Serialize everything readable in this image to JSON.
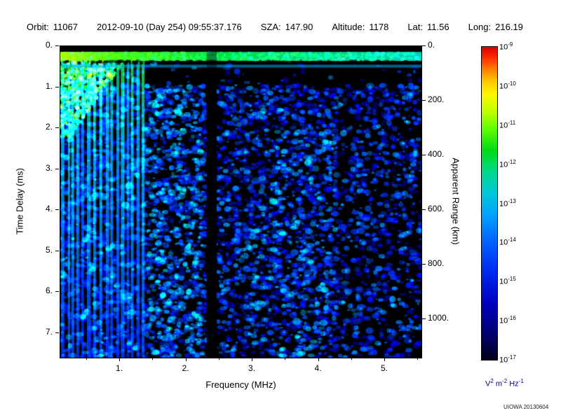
{
  "header": {
    "segments": [
      {
        "label": "Orbit:",
        "value": "11067"
      },
      {
        "label": "",
        "value": "2012-09-10 (Day 254) 09:55:37.176"
      },
      {
        "label": "SZA:",
        "value": "147.90"
      },
      {
        "label": "Altitude:",
        "value": "1178"
      },
      {
        "label": "Lat:",
        "value": "11.56"
      },
      {
        "label": "Long:",
        "value": "216.19"
      }
    ]
  },
  "watermark": "UIOWA 20130604",
  "chart_data": {
    "type": "heatmap",
    "title": "",
    "xlabel": "Frequency (MHz)",
    "ylabel_left": "Time Delay (ms)",
    "ylabel_right": "Apparent Range (km)",
    "x_range_mhz": [
      0.1,
      5.55
    ],
    "y_range_ms": [
      0,
      7.6
    ],
    "y_right_range_km": [
      0,
      1140
    ],
    "km_per_ms": 150,
    "x_ticks": [
      {
        "v": 1,
        "label": "1."
      },
      {
        "v": 2,
        "label": "2."
      },
      {
        "v": 3,
        "label": "3."
      },
      {
        "v": 4,
        "label": "4."
      },
      {
        "v": 5,
        "label": "5."
      }
    ],
    "y_ticks_left": [
      {
        "v": 0,
        "label": "0."
      },
      {
        "v": 1,
        "label": "1."
      },
      {
        "v": 2,
        "label": "2."
      },
      {
        "v": 3,
        "label": "3."
      },
      {
        "v": 4,
        "label": "4."
      },
      {
        "v": 5,
        "label": "5."
      },
      {
        "v": 6,
        "label": "6."
      },
      {
        "v": 7,
        "label": "7."
      }
    ],
    "y_ticks_right": [
      {
        "v": 0,
        "label": "0."
      },
      {
        "v": 200,
        "label": "200."
      },
      {
        "v": 400,
        "label": "400."
      },
      {
        "v": 600,
        "label": "600."
      },
      {
        "v": 800,
        "label": "800."
      },
      {
        "v": 1000,
        "label": "1000."
      }
    ],
    "colorbar": {
      "scale": "log",
      "tick_exponents": [
        "-9",
        "-10",
        "-11",
        "-12",
        "-13",
        "-14",
        "-15",
        "-16",
        "-17"
      ],
      "unit_parts": [
        {
          "base": "V",
          "exp": "2"
        },
        {
          "base": "m",
          "exp": "-2"
        },
        {
          "base": "Hz",
          "exp": "-1"
        }
      ],
      "palette": [
        {
          "pos": 0.0,
          "color": "#d80000"
        },
        {
          "pos": 0.035,
          "color": "#ff2a00"
        },
        {
          "pos": 0.07,
          "color": "#ff7a00"
        },
        {
          "pos": 0.11,
          "color": "#ffc800"
        },
        {
          "pos": 0.15,
          "color": "#fff600"
        },
        {
          "pos": 0.2,
          "color": "#c8ff00"
        },
        {
          "pos": 0.26,
          "color": "#64ff00"
        },
        {
          "pos": 0.33,
          "color": "#00dc14"
        },
        {
          "pos": 0.4,
          "color": "#00d88c"
        },
        {
          "pos": 0.47,
          "color": "#00c8dc"
        },
        {
          "pos": 0.54,
          "color": "#00a0ff"
        },
        {
          "pos": 0.62,
          "color": "#0064ff"
        },
        {
          "pos": 0.72,
          "color": "#0028f0"
        },
        {
          "pos": 0.82,
          "color": "#0000be"
        },
        {
          "pos": 0.91,
          "color": "#000078"
        },
        {
          "pos": 0.97,
          "color": "#000038"
        },
        {
          "pos": 1.0,
          "color": "#000014"
        }
      ]
    },
    "features": {
      "surface_echo_band_ms": [
        0.14,
        0.36
      ],
      "second_echo_ms": [
        0.45,
        0.52
      ],
      "plasma_harmonic_stripes_mhz": [
        0.1,
        1.35
      ],
      "dark_gap_mhz": [
        2.31,
        2.46
      ],
      "diffuse_echo_start_ms": 0.95
    },
    "render_seed": 42
  }
}
